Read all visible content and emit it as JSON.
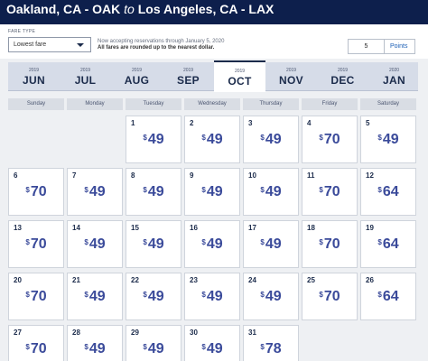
{
  "header": {
    "origin": "Oakland, CA - OAK",
    "separator": "to",
    "destination": "Los Angeles, CA - LAX"
  },
  "controls": {
    "fare_type_label": "FARE TYPE",
    "fare_type_value": "Lowest fare",
    "notice_line1": "Now accepting reservations through January 5, 2020",
    "notice_line2": "All fares are rounded up to the nearest dollar.",
    "points_value": "5",
    "points_unit": "Points"
  },
  "months": [
    {
      "year": "2019",
      "name": "JUN",
      "selected": false
    },
    {
      "year": "2019",
      "name": "JUL",
      "selected": false
    },
    {
      "year": "2019",
      "name": "AUG",
      "selected": false
    },
    {
      "year": "2019",
      "name": "SEP",
      "selected": false
    },
    {
      "year": "2019",
      "name": "OCT",
      "selected": true
    },
    {
      "year": "2019",
      "name": "NOV",
      "selected": false
    },
    {
      "year": "2019",
      "name": "DEC",
      "selected": false
    },
    {
      "year": "2020",
      "name": "JAN",
      "selected": false
    }
  ],
  "weekdays": [
    "Sunday",
    "Monday",
    "Tuesday",
    "Wednesday",
    "Thursday",
    "Friday",
    "Saturday"
  ],
  "currency_symbol": "$",
  "first_weekday_index": 2,
  "days": [
    {
      "day": "1",
      "price": "49"
    },
    {
      "day": "2",
      "price": "49"
    },
    {
      "day": "3",
      "price": "49"
    },
    {
      "day": "4",
      "price": "70"
    },
    {
      "day": "5",
      "price": "49"
    },
    {
      "day": "6",
      "price": "70"
    },
    {
      "day": "7",
      "price": "49"
    },
    {
      "day": "8",
      "price": "49"
    },
    {
      "day": "9",
      "price": "49"
    },
    {
      "day": "10",
      "price": "49"
    },
    {
      "day": "11",
      "price": "70"
    },
    {
      "day": "12",
      "price": "64"
    },
    {
      "day": "13",
      "price": "70"
    },
    {
      "day": "14",
      "price": "49"
    },
    {
      "day": "15",
      "price": "49"
    },
    {
      "day": "16",
      "price": "49"
    },
    {
      "day": "17",
      "price": "49"
    },
    {
      "day": "18",
      "price": "70"
    },
    {
      "day": "19",
      "price": "64"
    },
    {
      "day": "20",
      "price": "70"
    },
    {
      "day": "21",
      "price": "49"
    },
    {
      "day": "22",
      "price": "49"
    },
    {
      "day": "23",
      "price": "49"
    },
    {
      "day": "24",
      "price": "49"
    },
    {
      "day": "25",
      "price": "70"
    },
    {
      "day": "26",
      "price": "64"
    },
    {
      "day": "27",
      "price": "70"
    },
    {
      "day": "28",
      "price": "49"
    },
    {
      "day": "29",
      "price": "49"
    },
    {
      "day": "30",
      "price": "49"
    },
    {
      "day": "31",
      "price": "78"
    }
  ]
}
